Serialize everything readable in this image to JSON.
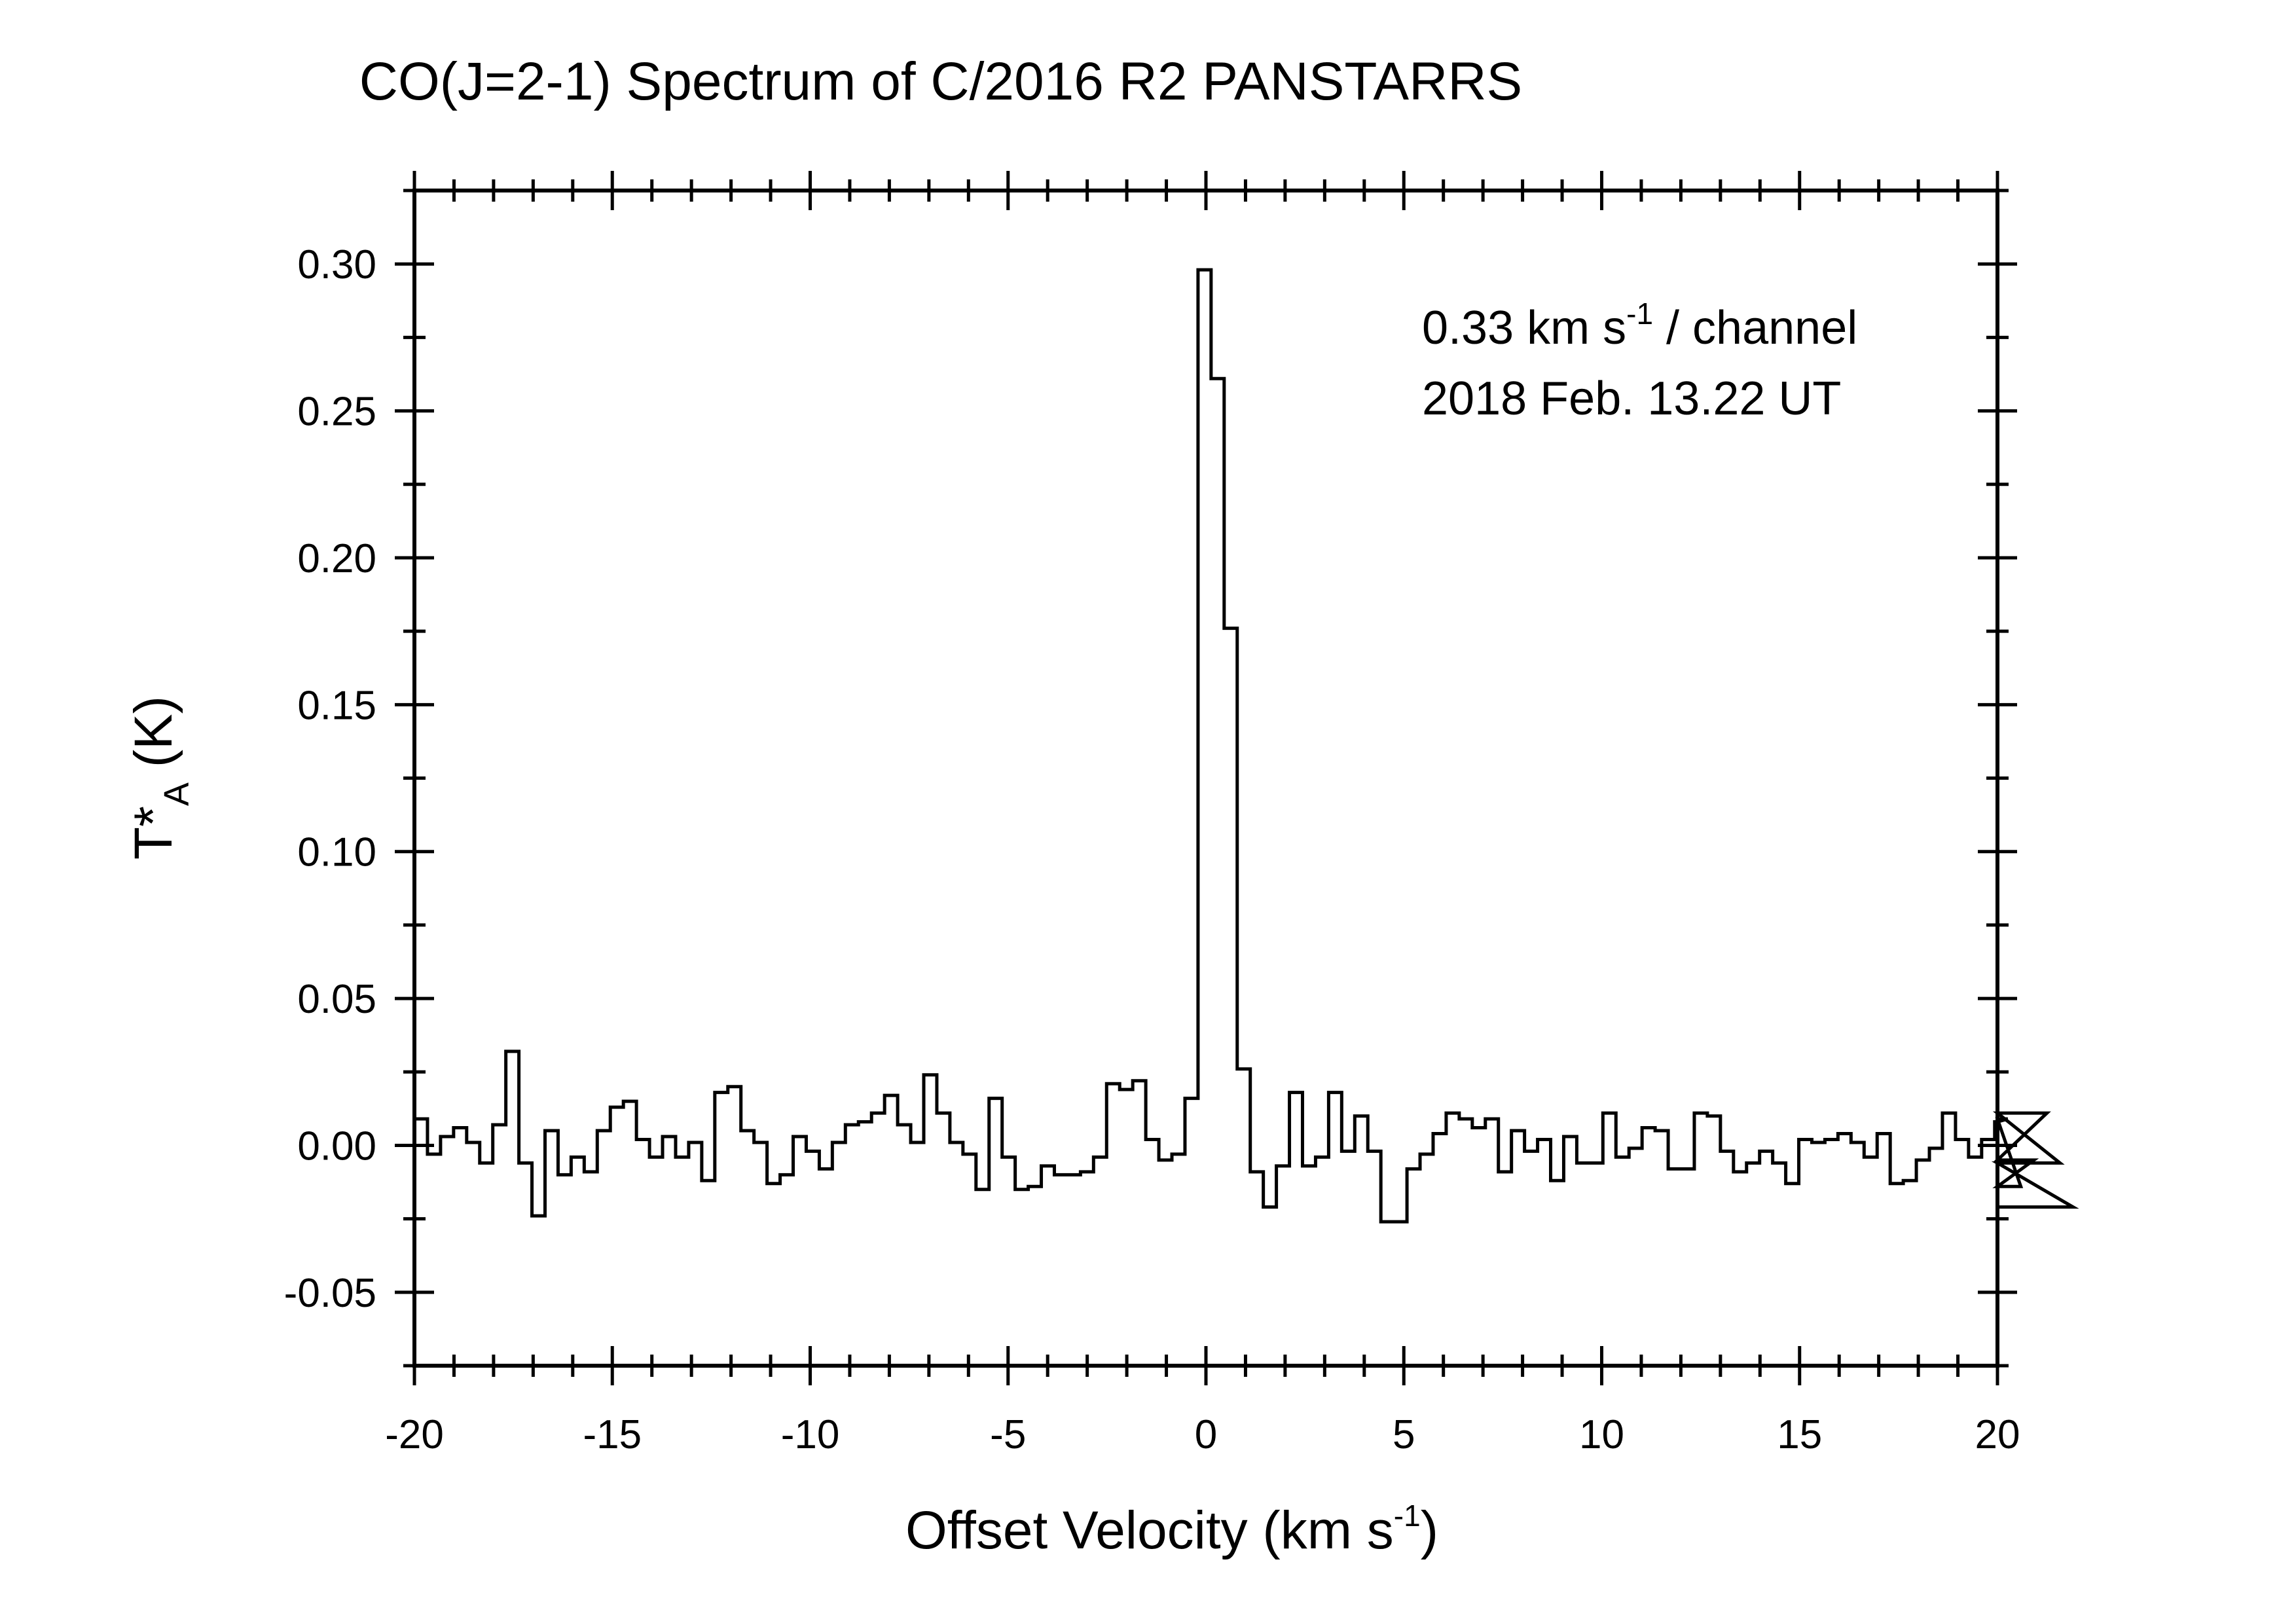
{
  "chart_data": {
    "type": "line",
    "style": "step",
    "title": "CO(J=2-1) Spectrum of C/2016 R2 PANSTARRS",
    "xlabel": {
      "main": "Offset Velocity (km s",
      "sup": "-1",
      "close": ")"
    },
    "ylabel": {
      "main": "T*",
      "sub": "A",
      "unit": " (K)"
    },
    "xlim": [
      -20,
      20
    ],
    "ylim": [
      -0.075,
      0.325
    ],
    "xticks": [
      "-20",
      "-15",
      "-10",
      "-5",
      "0",
      "5",
      "10",
      "15",
      "20"
    ],
    "yticks": [
      "-0.05",
      "0.00",
      "0.05",
      "0.10",
      "0.15",
      "0.20",
      "0.25",
      "0.30"
    ],
    "annotation": {
      "line1_main": "0.33 km s",
      "line1_sup": "-1",
      "line1_rest": " / channel",
      "line2": "2018 Feb. 13.22 UT"
    },
    "channel_width_kms": 0.33,
    "x_start": -20.0,
    "series": [
      {
        "name": "CO(J=2-1)",
        "color": "#000000",
        "values": [
          0.009,
          -0.003,
          0.003,
          0.006,
          0.001,
          -0.006,
          0.007,
          0.032,
          -0.006,
          -0.024,
          0.005,
          -0.01,
          -0.004,
          -0.009,
          0.005,
          0.013,
          0.015,
          0.002,
          -0.004,
          0.003,
          -0.004,
          0.001,
          -0.012,
          0.018,
          0.02,
          0.005,
          0.001,
          -0.013,
          -0.01,
          0.003,
          -0.002,
          -0.008,
          0.001,
          0.007,
          0.008,
          0.011,
          0.017,
          0.007,
          0.001,
          0.024,
          0.011,
          0.001,
          -0.003,
          -0.015,
          0.016,
          -0.004,
          -0.015,
          -0.014,
          -0.007,
          -0.01,
          -0.01,
          -0.009,
          -0.004,
          0.021,
          0.019,
          0.022,
          0.002,
          -0.005,
          -0.003,
          0.016,
          0.298,
          0.261,
          0.176,
          0.026,
          -0.009,
          -0.021,
          -0.007,
          0.018,
          -0.007,
          -0.004,
          0.018,
          -0.002,
          0.01,
          -0.002,
          -0.026,
          -0.026,
          -0.008,
          -0.003,
          0.004,
          0.011,
          0.009,
          0.006,
          0.009,
          -0.009,
          0.005,
          -0.002,
          0.002,
          -0.012,
          0.003,
          -0.006,
          -0.006,
          0.011,
          -0.004,
          -0.001,
          0.006,
          0.005,
          -0.008,
          -0.008,
          0.011,
          0.01,
          -0.002,
          -0.009,
          -0.006,
          -0.002,
          -0.006,
          -0.013,
          0.002,
          0.001,
          0.002,
          0.004,
          0.001,
          -0.004,
          0.004,
          -0.013,
          -0.012,
          -0.005,
          -0.001,
          0.011,
          0.002,
          -0.004,
          0.002,
          0.008,
          0.009,
          -0.014,
          -0.005,
          0.011,
          -0.006,
          -0.021
        ]
      }
    ],
    "grid": false
  }
}
